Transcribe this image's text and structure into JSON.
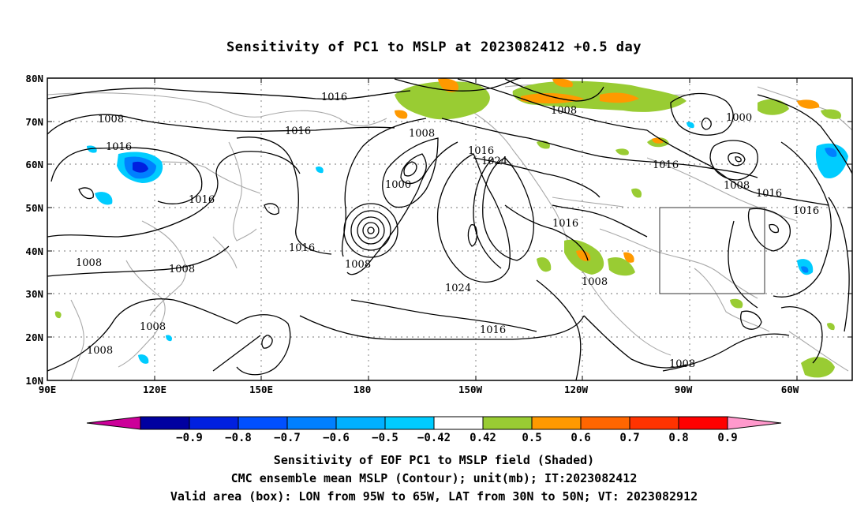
{
  "title": "Sensitivity of PC1 to MSLP at 2023082412 +0.5 day",
  "lat_labels": [
    "80N",
    "70N",
    "60N",
    "50N",
    "40N",
    "30N",
    "20N",
    "10N"
  ],
  "lon_labels": [
    "90E",
    "120E",
    "150E",
    "180",
    "150W",
    "120W",
    "90W",
    "60W"
  ],
  "contour_labels": [
    {
      "text": "1016"
    },
    {
      "text": "1008"
    },
    {
      "text": "1016"
    },
    {
      "text": "1016"
    },
    {
      "text": "1008"
    },
    {
      "text": "1016"
    },
    {
      "text": "1024"
    },
    {
      "text": "1000"
    },
    {
      "text": "1008"
    },
    {
      "text": "1016"
    },
    {
      "text": "1016"
    },
    {
      "text": "1000"
    },
    {
      "text": "1008"
    },
    {
      "text": "1008"
    },
    {
      "text": "1016"
    },
    {
      "text": "1016"
    },
    {
      "text": "1016"
    },
    {
      "text": "1016"
    },
    {
      "text": "1008"
    },
    {
      "text": "1008"
    },
    {
      "text": "1008"
    },
    {
      "text": "1024"
    },
    {
      "text": "1008"
    },
    {
      "text": "1016"
    },
    {
      "text": "1008"
    },
    {
      "text": "1008"
    },
    {
      "text": "1008"
    }
  ],
  "colorbar": {
    "colors": [
      "#cc0099",
      "#0000a0",
      "#0020e0",
      "#0050ff",
      "#0080ff",
      "#00b0ff",
      "#00ccff",
      "#ffffff",
      "#99cc33",
      "#ff9900",
      "#ff6600",
      "#ff3300",
      "#ff0000",
      "#ff99cc"
    ],
    "ticks": [
      "-0.9",
      "-0.8",
      "-0.7",
      "-0.6",
      "-0.5",
      "-0.42",
      "0.42",
      "0.5",
      "0.6",
      "0.7",
      "0.8",
      "0.9"
    ]
  },
  "footer": {
    "line1": "Sensitivity of EOF PC1 to MSLP field (Shaded)",
    "line2": "CMC ensemble mean MSLP (Contour); unit(mb); IT:2023082412",
    "line3": "Valid area (box): LON from 95W to 65W, LAT from 30N to 50N; VT: 2023082912"
  }
}
